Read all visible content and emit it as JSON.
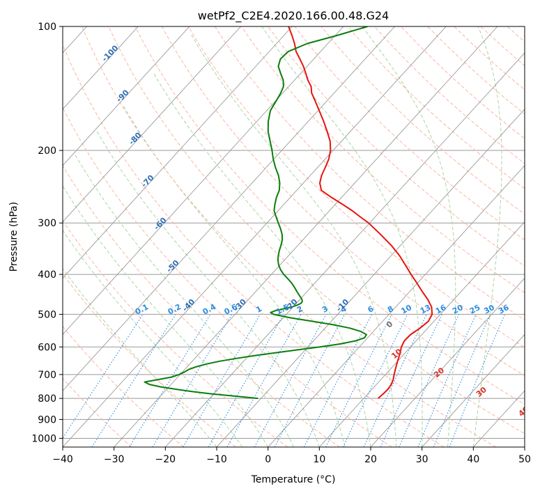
{
  "chart_data": {
    "type": "line",
    "title": "wetPf2_C2E4.2020.166.00.48.G24",
    "xlabel": "Temperature (°C)",
    "ylabel": "Pressure (hPa)",
    "xlim": [
      -40,
      50
    ],
    "ylim": [
      1050,
      100
    ],
    "y_scale": "log",
    "grid": true,
    "x_ticks": [
      "−40",
      "−30",
      "−20",
      "−10",
      "0",
      "10",
      "20",
      "30",
      "40",
      "50"
    ],
    "y_ticks": [
      "100",
      "200",
      "300",
      "400",
      "500",
      "600",
      "700",
      "800",
      "900",
      "1000"
    ],
    "colors": {
      "temperature": "#e8120c",
      "dewpoint": "#0a7d0a",
      "isotherm": "#999999",
      "dry_adiabat": "#fbb5a0",
      "moist_adiabat": "#a7d6a2",
      "mixing_ratio": "#2b8ce0",
      "dry_adiabat_label": "#d6322b",
      "moist_adiabat_label": "#707070",
      "isotherm_label": "#2f6fb5"
    },
    "series": [
      {
        "key": "temperature",
        "points": [
          [
            800,
            12.8
          ],
          [
            780,
            13.0
          ],
          [
            760,
            13.1
          ],
          [
            740,
            12.9
          ],
          [
            720,
            12.4
          ],
          [
            700,
            11.7
          ],
          [
            680,
            11.0
          ],
          [
            650,
            10.0
          ],
          [
            620,
            9.0
          ],
          [
            600,
            8.2
          ],
          [
            580,
            7.7
          ],
          [
            560,
            7.8
          ],
          [
            540,
            8.5
          ],
          [
            520,
            8.9
          ],
          [
            500,
            8.4
          ],
          [
            480,
            7.0
          ],
          [
            460,
            4.9
          ],
          [
            440,
            2.4
          ],
          [
            420,
            -0.1
          ],
          [
            400,
            -2.8
          ],
          [
            380,
            -5.5
          ],
          [
            360,
            -8.4
          ],
          [
            340,
            -11.8
          ],
          [
            320,
            -15.8
          ],
          [
            300,
            -20.2
          ],
          [
            290,
            -22.9
          ],
          [
            280,
            -25.6
          ],
          [
            270,
            -28.7
          ],
          [
            260,
            -32.0
          ],
          [
            250,
            -35.2
          ],
          [
            240,
            -36.8
          ],
          [
            230,
            -37.8
          ],
          [
            220,
            -38.5
          ],
          [
            210,
            -39.3
          ],
          [
            200,
            -40.5
          ],
          [
            190,
            -42.2
          ],
          [
            180,
            -44.5
          ],
          [
            170,
            -47.0
          ],
          [
            160,
            -49.8
          ],
          [
            150,
            -52.8
          ],
          [
            145,
            -54.4
          ],
          [
            140,
            -55.6
          ],
          [
            135,
            -57.4
          ],
          [
            130,
            -59.0
          ],
          [
            125,
            -60.7
          ],
          [
            120,
            -62.7
          ],
          [
            115,
            -64.8
          ],
          [
            110,
            -66.5
          ],
          [
            105,
            -68.5
          ],
          [
            100,
            -70.7
          ]
        ]
      },
      {
        "key": "dewpoint",
        "points": [
          [
            800,
            -10.6
          ],
          [
            790,
            -15.5
          ],
          [
            780,
            -20.5
          ],
          [
            770,
            -24.7
          ],
          [
            760,
            -28.2
          ],
          [
            750,
            -31.6
          ],
          [
            740,
            -34.2
          ],
          [
            730,
            -35.6
          ],
          [
            720,
            -33.4
          ],
          [
            710,
            -31.2
          ],
          [
            700,
            -30.2
          ],
          [
            690,
            -29.6
          ],
          [
            680,
            -29.2
          ],
          [
            670,
            -28.2
          ],
          [
            660,
            -26.7
          ],
          [
            650,
            -24.7
          ],
          [
            640,
            -22.0
          ],
          [
            630,
            -18.9
          ],
          [
            620,
            -15.4
          ],
          [
            610,
            -11.6
          ],
          [
            600,
            -7.7
          ],
          [
            590,
            -4.2
          ],
          [
            580,
            -1.8
          ],
          [
            570,
            -0.6
          ],
          [
            560,
            -0.8
          ],
          [
            550,
            -2.5
          ],
          [
            540,
            -5.2
          ],
          [
            530,
            -9.0
          ],
          [
            520,
            -13.6
          ],
          [
            510,
            -18.5
          ],
          [
            500,
            -22.5
          ],
          [
            495,
            -23.4
          ],
          [
            490,
            -22.8
          ],
          [
            485,
            -21.6
          ],
          [
            480,
            -20.3
          ],
          [
            475,
            -19.5
          ],
          [
            470,
            -19.1
          ],
          [
            465,
            -19.2
          ],
          [
            460,
            -19.6
          ],
          [
            455,
            -20.2
          ],
          [
            450,
            -20.8
          ],
          [
            445,
            -21.4
          ],
          [
            440,
            -22.0
          ],
          [
            430,
            -23.2
          ],
          [
            420,
            -24.5
          ],
          [
            410,
            -26.0
          ],
          [
            400,
            -27.6
          ],
          [
            390,
            -29.0
          ],
          [
            380,
            -30.2
          ],
          [
            370,
            -31.2
          ],
          [
            360,
            -32.0
          ],
          [
            350,
            -32.7
          ],
          [
            340,
            -33.3
          ],
          [
            330,
            -34.0
          ],
          [
            320,
            -35.0
          ],
          [
            310,
            -36.3
          ],
          [
            300,
            -37.8
          ],
          [
            290,
            -39.3
          ],
          [
            280,
            -40.8
          ],
          [
            270,
            -41.8
          ],
          [
            260,
            -42.7
          ],
          [
            250,
            -43.4
          ],
          [
            240,
            -44.6
          ],
          [
            230,
            -46.2
          ],
          [
            220,
            -48.2
          ],
          [
            210,
            -50.1
          ],
          [
            200,
            -51.9
          ],
          [
            190,
            -53.9
          ],
          [
            180,
            -56.0
          ],
          [
            170,
            -57.8
          ],
          [
            160,
            -59.3
          ],
          [
            150,
            -60.0
          ],
          [
            145,
            -60.4
          ],
          [
            140,
            -61.0
          ],
          [
            135,
            -62.2
          ],
          [
            130,
            -63.9
          ],
          [
            125,
            -65.6
          ],
          [
            120,
            -66.5
          ],
          [
            115,
            -66.3
          ],
          [
            110,
            -64.0
          ],
          [
            105,
            -59.5
          ],
          [
            100,
            -55.3
          ]
        ]
      }
    ],
    "mixing_ratio_labels": [
      "0.1",
      "0.2",
      "0.4",
      "0.6",
      "1",
      "1.5",
      "2",
      "3",
      "4",
      "6",
      "8",
      "10",
      "13",
      "16",
      "20",
      "25",
      "30",
      "36"
    ],
    "mixing_ratio_values": [
      0.1,
      0.2,
      0.4,
      0.6,
      1,
      1.5,
      2,
      3,
      4,
      6,
      8,
      10,
      13,
      16,
      20,
      25,
      30,
      36
    ],
    "isotherm_labels": [
      "-100",
      "-90",
      "-80",
      "-70",
      "-60",
      "-50",
      "-40",
      "-30",
      "-20",
      "-10"
    ],
    "dry_adiabat_labels": [
      "10",
      "20",
      "30",
      "40"
    ],
    "moist_adiabat_labels": [
      "0"
    ]
  }
}
